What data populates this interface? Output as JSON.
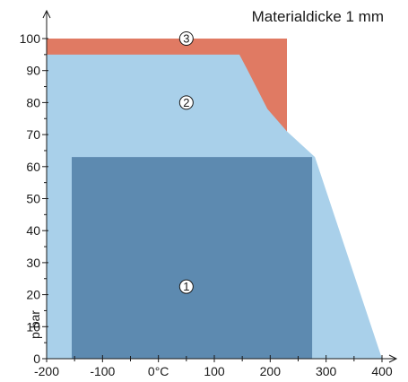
{
  "chart_data": {
    "type": "area",
    "title": "Materialdicke 1 mm",
    "xlabel": "",
    "ylabel": "p bar",
    "xlim": [
      -200,
      400
    ],
    "ylim": [
      0,
      100
    ],
    "x_ticks": [
      -200,
      -100,
      0,
      100,
      200,
      300,
      400
    ],
    "x_tick_labels": [
      "-200",
      "-100",
      "0°C",
      "100",
      "200",
      "300",
      "400"
    ],
    "y_ticks": [
      0,
      10,
      20,
      30,
      40,
      50,
      60,
      70,
      80,
      90,
      100
    ],
    "y_tick_labels": [
      "0",
      "10",
      "20",
      "30",
      "40",
      "50",
      "60",
      "70",
      "80",
      "90",
      "100"
    ],
    "grid": false,
    "regions": [
      {
        "name": "3",
        "color": "#e07a63",
        "points": [
          [
            -200,
            100
          ],
          [
            230,
            100
          ],
          [
            230,
            71
          ],
          [
            -200,
            71
          ]
        ]
      },
      {
        "name": "2",
        "color": "#a9d0ea",
        "points": [
          [
            -200,
            0
          ],
          [
            -200,
            95
          ],
          [
            145,
            95
          ],
          [
            160,
            90
          ],
          [
            195,
            78
          ],
          [
            230,
            71
          ],
          [
            280,
            63
          ],
          [
            400,
            0
          ]
        ]
      },
      {
        "name": "1",
        "color": "#5d8ab0",
        "points": [
          [
            -155,
            0
          ],
          [
            -155,
            63
          ],
          [
            275,
            63
          ],
          [
            275,
            0
          ]
        ]
      }
    ],
    "region_labels": [
      {
        "text": "3",
        "x": 50,
        "y": 100
      },
      {
        "text": "2",
        "x": 50,
        "y": 80
      },
      {
        "text": "1",
        "x": 50,
        "y": 22.5
      }
    ]
  }
}
